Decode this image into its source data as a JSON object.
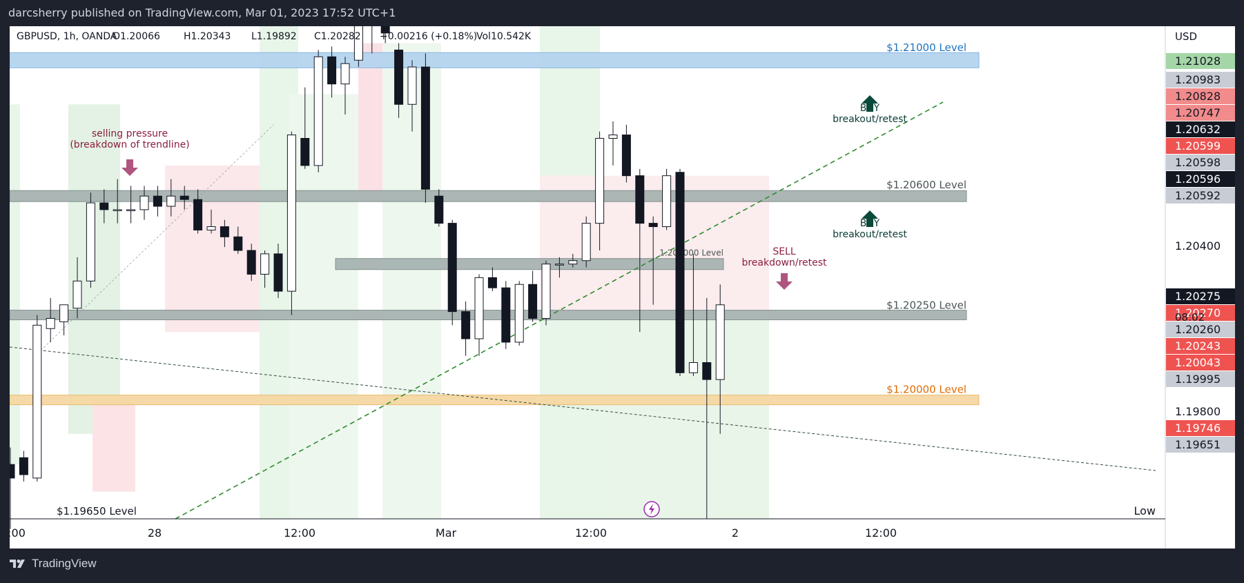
{
  "publisher_line": "darcsherry published on TradingView.com, Mar 01, 2023 17:52 UTC+1",
  "brand": "TradingView",
  "legend": {
    "symbol": "GBPUSD, 1h, OANDA",
    "open": "O1.20066",
    "high": "H1.20343",
    "low": "L1.19892",
    "close": "C1.20282",
    "change": "+0.00216 (+0.18%)",
    "volume": "Vol10.542K"
  },
  "currency": "USD",
  "countdown": "08:02",
  "low_label": "Low",
  "colors": {
    "up_body": "#ffffff",
    "down_body": "#131722",
    "green_line": "#2e8b2e",
    "level_blue": "#4a90d9",
    "level_orange": "#f0a030",
    "level_gray": "#6a7a7a",
    "buy_arrow": "#0b4a3a",
    "sell_arrow": "#b05580"
  },
  "chart_data": {
    "type": "candlestick",
    "symbol": "GBPUSD",
    "timeframe": "1h",
    "ylim": [
      1.1965,
      1.211
    ],
    "x_ticks": [
      ":00",
      "28",
      "12:00",
      "Mar",
      "12:00",
      "2",
      "12:00"
    ],
    "price_labels": [
      {
        "text": "1.21028",
        "value": 1.21028,
        "bg": "#a5d6a7",
        "fg": "#131722"
      },
      {
        "text": "1.20983",
        "value": 1.20983,
        "bg": "#c8ccd4",
        "fg": "#131722"
      },
      {
        "text": "1.20828",
        "value": 1.20828,
        "bg": "#f28b8b",
        "fg": "#131722"
      },
      {
        "text": "1.20747",
        "value": 1.20747,
        "bg": "#f28b8b",
        "fg": "#131722"
      },
      {
        "text": "1.20632",
        "value": 1.20632,
        "bg": "#131722",
        "fg": "#ffffff"
      },
      {
        "text": "1.20599",
        "value": 1.20599,
        "bg": "#ef5350",
        "fg": "#ffffff"
      },
      {
        "text": "1.20598",
        "value": 1.20598,
        "bg": "#c8ccd4",
        "fg": "#131722"
      },
      {
        "text": "1.20596",
        "value": 1.20596,
        "bg": "#131722",
        "fg": "#ffffff"
      },
      {
        "text": "1.20592",
        "value": 1.20592,
        "bg": "#c8ccd4",
        "fg": "#131722"
      },
      {
        "text": "1.20400",
        "value": 1.204,
        "bg": "",
        "fg": "#131722"
      },
      {
        "text": "1.20275",
        "value": 1.20275,
        "bg": "#131722",
        "fg": "#ffffff"
      },
      {
        "text": "1.20270",
        "value": 1.2027,
        "bg": "#ef5350",
        "fg": "#ffffff"
      },
      {
        "text": "1.20260",
        "value": 1.2026,
        "bg": "#c8ccd4",
        "fg": "#131722"
      },
      {
        "text": "1.20243",
        "value": 1.20243,
        "bg": "#ef5350",
        "fg": "#ffffff"
      },
      {
        "text": "1.20043",
        "value": 1.20043,
        "bg": "#ef5350",
        "fg": "#ffffff"
      },
      {
        "text": "1.19995",
        "value": 1.19995,
        "bg": "#c8ccd4",
        "fg": "#131722"
      },
      {
        "text": "1.19800",
        "value": 1.198,
        "bg": "",
        "fg": "#131722"
      },
      {
        "text": "1.19746",
        "value": 1.19746,
        "bg": "#ef5350",
        "fg": "#ffffff"
      },
      {
        "text": "1.19651",
        "value": 1.19651,
        "bg": "#c8ccd4",
        "fg": "#131722"
      }
    ],
    "levels": [
      {
        "label": "$1.21000 Level",
        "value": 1.21,
        "color": "blue"
      },
      {
        "label": "$1.20600 Level",
        "value": 1.206,
        "color": "gray"
      },
      {
        "label": "1.204000 Level",
        "value": 1.204,
        "color": "gray"
      },
      {
        "label": "$1.20250 Level",
        "value": 1.2025,
        "color": "gray"
      },
      {
        "label": "$1.20000 Level",
        "value": 1.2,
        "color": "orange"
      },
      {
        "label": "$1.19650 Level",
        "value": 1.1965,
        "color": "none"
      }
    ],
    "annotations": [
      {
        "id": "selling",
        "lines": [
          "selling pressure",
          "(breakdown of trendline)"
        ],
        "arrow": "down"
      },
      {
        "id": "buy1",
        "lines": [
          "BUY",
          "breakout/retest"
        ],
        "arrow": "up"
      },
      {
        "id": "buy2",
        "lines": [
          "BUY",
          "breakout/retest"
        ],
        "arrow": "up"
      },
      {
        "id": "sell",
        "lines": [
          "SELL",
          "breakdown/retest"
        ],
        "arrow": "down"
      }
    ],
    "candles": [
      {
        "o": 1.1981,
        "h": 1.1986,
        "l": 1.1962,
        "c": 1.1977
      },
      {
        "o": 1.1983,
        "h": 1.1985,
        "l": 1.1976,
        "c": 1.1978
      },
      {
        "o": 1.1977,
        "h": 1.2025,
        "l": 1.1976,
        "c": 1.2022
      },
      {
        "o": 1.2021,
        "h": 1.203,
        "l": 1.2017,
        "c": 1.2024
      },
      {
        "o": 1.2023,
        "h": 1.2028,
        "l": 1.2019,
        "c": 1.2028
      },
      {
        "o": 1.2027,
        "h": 1.2042,
        "l": 1.2024,
        "c": 1.2035
      },
      {
        "o": 1.2035,
        "h": 1.2061,
        "l": 1.2033,
        "c": 1.2058
      },
      {
        "o": 1.2058,
        "h": 1.2062,
        "l": 1.2052,
        "c": 1.2056
      },
      {
        "o": 1.2056,
        "h": 1.2065,
        "l": 1.2052,
        "c": 1.2056
      },
      {
        "o": 1.2056,
        "h": 1.2063,
        "l": 1.2052,
        "c": 1.2056
      },
      {
        "o": 1.2056,
        "h": 1.2063,
        "l": 1.2053,
        "c": 1.206
      },
      {
        "o": 1.206,
        "h": 1.2063,
        "l": 1.2054,
        "c": 1.2057
      },
      {
        "o": 1.2057,
        "h": 1.2065,
        "l": 1.2054,
        "c": 1.206
      },
      {
        "o": 1.206,
        "h": 1.2063,
        "l": 1.2056,
        "c": 1.2059
      },
      {
        "o": 1.2059,
        "h": 1.2062,
        "l": 1.2049,
        "c": 1.205
      },
      {
        "o": 1.205,
        "h": 1.2056,
        "l": 1.2049,
        "c": 1.2051
      },
      {
        "o": 1.2051,
        "h": 1.2053,
        "l": 1.2045,
        "c": 1.2048
      },
      {
        "o": 1.2048,
        "h": 1.2051,
        "l": 1.2043,
        "c": 1.2044
      },
      {
        "o": 1.2044,
        "h": 1.2046,
        "l": 1.2035,
        "c": 1.2037
      },
      {
        "o": 1.2037,
        "h": 1.2044,
        "l": 1.2033,
        "c": 1.2043
      },
      {
        "o": 1.2043,
        "h": 1.2046,
        "l": 1.203,
        "c": 1.2032
      },
      {
        "o": 1.2032,
        "h": 1.2079,
        "l": 1.2025,
        "c": 1.2078
      },
      {
        "o": 1.2077,
        "h": 1.2092,
        "l": 1.2068,
        "c": 1.2069
      },
      {
        "o": 1.2069,
        "h": 1.2103,
        "l": 1.2067,
        "c": 1.2101
      },
      {
        "o": 1.2101,
        "h": 1.2104,
        "l": 1.2089,
        "c": 1.2093
      },
      {
        "o": 1.2093,
        "h": 1.2101,
        "l": 1.2084,
        "c": 1.2099
      },
      {
        "o": 1.21,
        "h": 1.2116,
        "l": 1.2098,
        "c": 1.2115
      },
      {
        "o": 1.2115,
        "h": 1.2118,
        "l": 1.2102,
        "c": 1.2114
      },
      {
        "o": 1.2114,
        "h": 1.212,
        "l": 1.2105,
        "c": 1.2108
      },
      {
        "o": 1.2103,
        "h": 1.2105,
        "l": 1.2083,
        "c": 1.2087
      },
      {
        "o": 1.2087,
        "h": 1.21,
        "l": 1.2079,
        "c": 1.2098
      },
      {
        "o": 1.2098,
        "h": 1.2102,
        "l": 1.2058,
        "c": 1.2062
      },
      {
        "o": 1.206,
        "h": 1.2062,
        "l": 1.2051,
        "c": 1.2052
      },
      {
        "o": 1.2052,
        "h": 1.2053,
        "l": 1.2022,
        "c": 1.2026
      },
      {
        "o": 1.2026,
        "h": 1.2029,
        "l": 1.2013,
        "c": 1.2018
      },
      {
        "o": 1.2018,
        "h": 1.2037,
        "l": 1.2013,
        "c": 1.2036
      },
      {
        "o": 1.2036,
        "h": 1.2039,
        "l": 1.2032,
        "c": 1.2033
      },
      {
        "o": 1.2033,
        "h": 1.2035,
        "l": 1.2015,
        "c": 1.2017
      },
      {
        "o": 1.2017,
        "h": 1.2035,
        "l": 1.2016,
        "c": 1.2034
      },
      {
        "o": 1.2034,
        "h": 1.2038,
        "l": 1.2023,
        "c": 1.2024
      },
      {
        "o": 1.2024,
        "h": 1.2041,
        "l": 1.2022,
        "c": 1.204
      },
      {
        "o": 1.204,
        "h": 1.2042,
        "l": 1.2036,
        "c": 1.204
      },
      {
        "o": 1.204,
        "h": 1.2043,
        "l": 1.2039,
        "c": 1.2041
      },
      {
        "o": 1.2041,
        "h": 1.2054,
        "l": 1.2039,
        "c": 1.2052
      },
      {
        "o": 1.2052,
        "h": 1.2079,
        "l": 1.2044,
        "c": 1.2077
      },
      {
        "o": 1.2077,
        "h": 1.2082,
        "l": 1.2069,
        "c": 1.2078
      },
      {
        "o": 1.2078,
        "h": 1.2081,
        "l": 1.2064,
        "c": 1.2066
      },
      {
        "o": 1.2066,
        "h": 1.2068,
        "l": 1.202,
        "c": 1.2052
      },
      {
        "o": 1.2052,
        "h": 1.2054,
        "l": 1.2028,
        "c": 1.2051
      },
      {
        "o": 1.2051,
        "h": 1.2068,
        "l": 1.205,
        "c": 1.2066
      },
      {
        "o": 1.2067,
        "h": 1.2068,
        "l": 1.2007,
        "c": 1.2008
      },
      {
        "o": 1.2008,
        "h": 1.2043,
        "l": 1.2007,
        "c": 1.2011
      },
      {
        "o": 1.2011,
        "h": 1.203,
        "l": 1.1965,
        "c": 1.2006
      },
      {
        "o": 1.2006,
        "h": 1.2034,
        "l": 1.199,
        "c": 1.2028
      }
    ]
  }
}
